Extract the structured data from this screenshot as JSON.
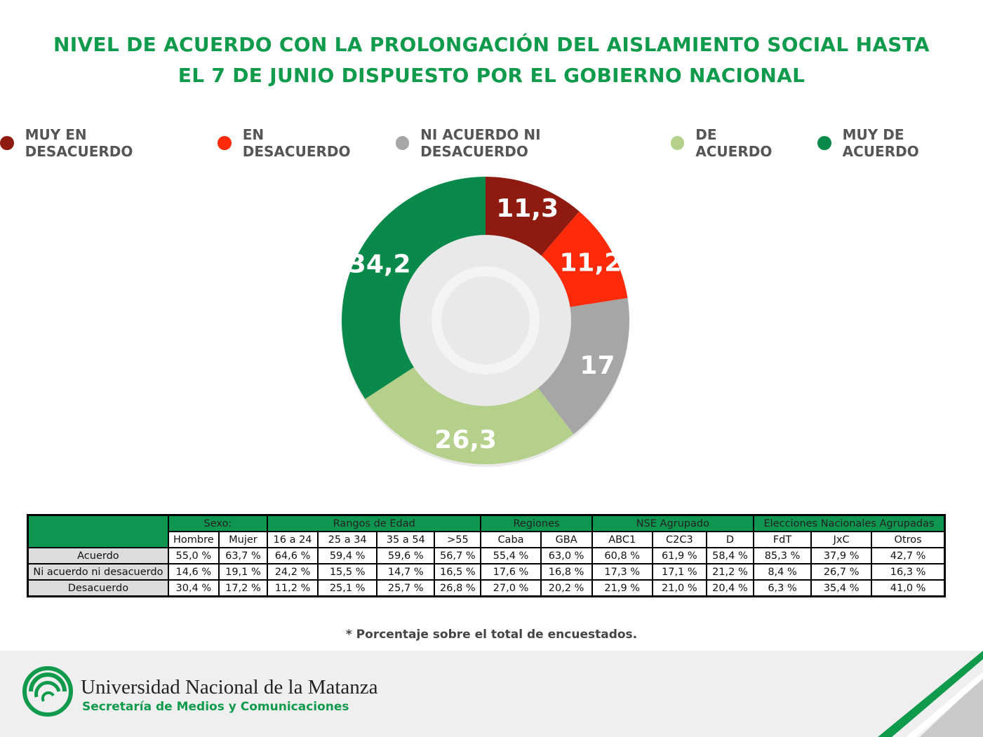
{
  "chart_data": {
    "type": "pie",
    "title_lines": [
      "NIVEL DE ACUERDO CON LA PROLONGACIÓN DEL AISLAMIENTO SOCIAL HASTA",
      "EL 7 DE JUNIO DISPUESTO POR EL GOBIERNO NACIONAL"
    ],
    "donut": true,
    "legend_placement": "top",
    "slices": [
      {
        "label": "MUY EN DESACUERDO",
        "value": 11.3,
        "display": "11,3",
        "color": "#8e1a10"
      },
      {
        "label": "EN DESACUERDO",
        "value": 11.2,
        "display": "11,2",
        "color": "#ff2a0a"
      },
      {
        "label": "NI ACUERDO NI DESACUERDO",
        "value": 17,
        "display": "17",
        "color": "#a6a6a6"
      },
      {
        "label": "DE ACUERDO",
        "value": 26.3,
        "display": "26,3",
        "color": "#b4d08a"
      },
      {
        "label": "MUY DE ACUERDO",
        "value": 34.2,
        "display": "34,2",
        "color": "#0a8a4a"
      }
    ]
  },
  "table": {
    "groups": [
      {
        "label": "Sexo:",
        "span": 2
      },
      {
        "label": "Rangos de Edad",
        "span": 4
      },
      {
        "label": "Regiones",
        "span": 2
      },
      {
        "label": "NSE Agrupado",
        "span": 3
      },
      {
        "label": "Elecciones Nacionales Agrupadas",
        "span": 3
      }
    ],
    "columns": [
      "Hombre",
      "Mujer",
      "16 a 24",
      "25 a 34",
      "35 a 54",
      ">55",
      "Caba",
      "GBA",
      "ABC1",
      "C2C3",
      "D",
      "FdT",
      "JxC",
      "Otros"
    ],
    "rows": [
      {
        "label": "Acuerdo",
        "values": [
          "55,0 %",
          "63,7 %",
          "64,6 %",
          "59,4 %",
          "59,6 %",
          "56,7 %",
          "55,4 %",
          "63,0 %",
          "60,8 %",
          "61,9 %",
          "58,4 %",
          "85,3 %",
          "37,9 %",
          "42,7 %"
        ]
      },
      {
        "label": "Ni acuerdo ni desacuerdo",
        "values": [
          "14,6 %",
          "19,1 %",
          "24,2 %",
          "15,5 %",
          "14,7 %",
          "16,5 %",
          "17,6 %",
          "16,8 %",
          "17,3 %",
          "17,1 %",
          "21,2 %",
          "8,4 %",
          "26,7 %",
          "16,3 %"
        ]
      },
      {
        "label": "Desacuerdo",
        "values": [
          "30,4 %",
          "17,2 %",
          "11,2 %",
          "25,1 %",
          "25,7 %",
          "26,8 %",
          "27,0 %",
          "20,2 %",
          "21,9 %",
          "21,0 %",
          "20,4 %",
          "6,3 %",
          "35,4 %",
          "41,0 %"
        ]
      }
    ]
  },
  "footnote": "* Porcentaje sobre el total de encuestados.",
  "footer": {
    "university": "Universidad Nacional de la Matanza",
    "department": "Secretaría de Medios y Comunicaciones",
    "logo_icon": "unlam-logo-icon"
  },
  "colors": {
    "title": "#109a4c",
    "table_header": "#0e9650",
    "row_label_bg": "#dcdcdc"
  }
}
